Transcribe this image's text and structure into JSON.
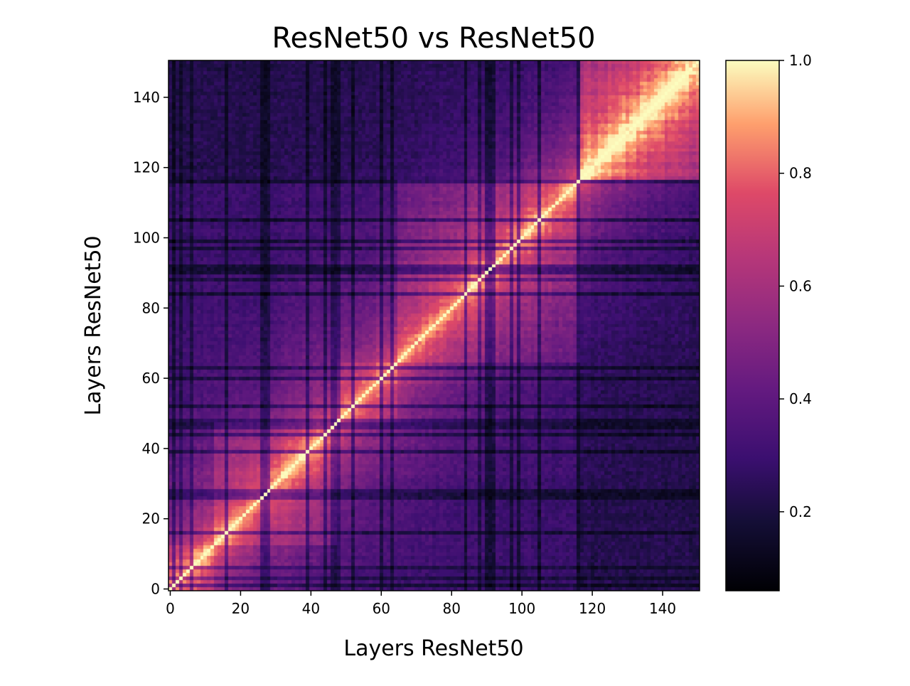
{
  "chart_data": {
    "type": "heatmap",
    "title": "ResNet50 vs ResNet50",
    "xlabel": "Layers ResNet50",
    "ylabel": "Layers ResNet50",
    "n": 151,
    "xlim": [
      0,
      151
    ],
    "ylim": [
      0,
      151
    ],
    "x_ticks": [
      0,
      20,
      40,
      60,
      80,
      100,
      120,
      140
    ],
    "y_ticks": [
      0,
      20,
      40,
      60,
      80,
      100,
      120,
      140
    ],
    "colorbar": {
      "range": [
        0.06,
        1.0
      ],
      "ticks": [
        0.2,
        0.4,
        0.6,
        0.8,
        1.0
      ],
      "tick_labels": [
        "0.2",
        "0.4",
        "0.6",
        "0.8",
        "1.0"
      ],
      "colormap": "magma"
    },
    "stages": [
      {
        "start": 0,
        "end": 13
      },
      {
        "start": 13,
        "end": 48
      },
      {
        "start": 48,
        "end": 65
      },
      {
        "start": 65,
        "end": 117
      },
      {
        "start": 117,
        "end": 151
      }
    ],
    "dark_layers": [
      1,
      3,
      6,
      16,
      26,
      27,
      28,
      39,
      44,
      46,
      47,
      48,
      52,
      60,
      63,
      84,
      88,
      90,
      91,
      92,
      97,
      99,
      105,
      116
    ],
    "diagonal_value": 1.0,
    "grid": false,
    "legend": "none"
  }
}
